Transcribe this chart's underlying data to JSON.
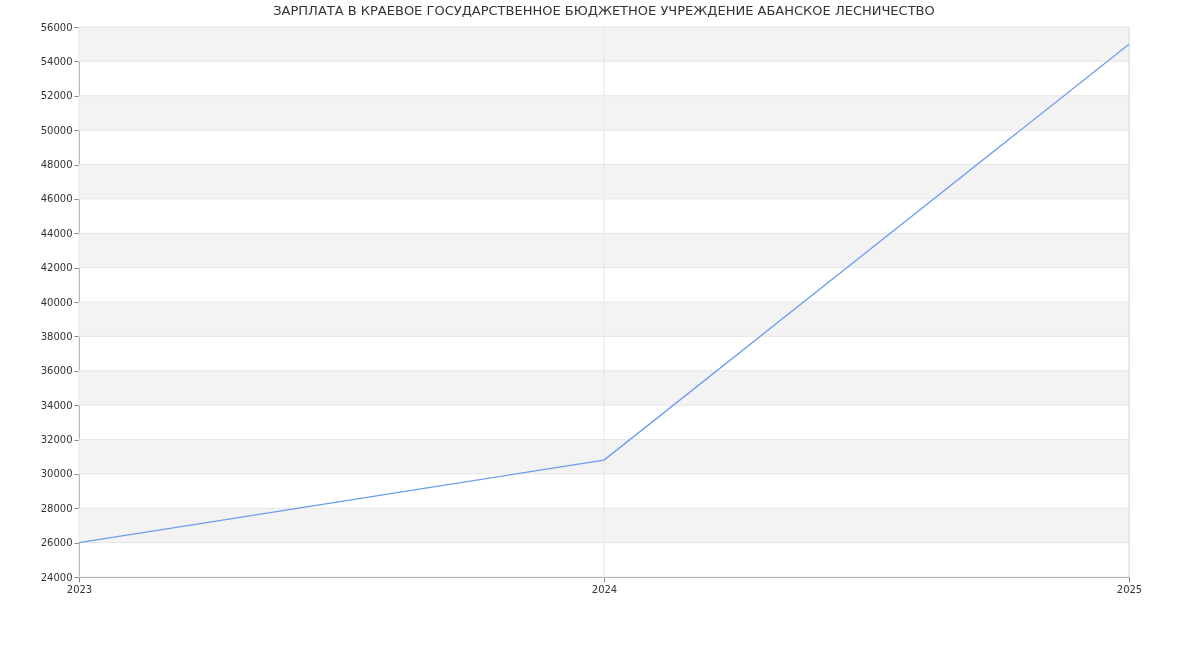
{
  "chart_data": {
    "type": "line",
    "title": "ЗАРПЛАТА В КРАЕВОЕ ГОСУДАРСТВЕННОЕ БЮДЖЕТНОЕ УЧРЕЖДЕНИЕ АБАНСКОЕ ЛЕСНИЧЕСТВО",
    "x": [
      2023,
      2024,
      2025
    ],
    "series": [
      {
        "color": "#6f9cf0",
        "values": [
          26000,
          30800,
          55000
        ]
      }
    ],
    "xlim": [
      2023,
      2025
    ],
    "xticks": [
      2023,
      2024,
      2025
    ],
    "ylim": [
      24000,
      56000
    ],
    "yticks": [
      24000,
      26000,
      28000,
      30000,
      32000,
      34000,
      36000,
      38000,
      40000,
      42000,
      44000,
      46000,
      48000,
      50000,
      52000,
      54000,
      56000
    ],
    "grid": true,
    "marker": "none",
    "line_style": "solid"
  }
}
